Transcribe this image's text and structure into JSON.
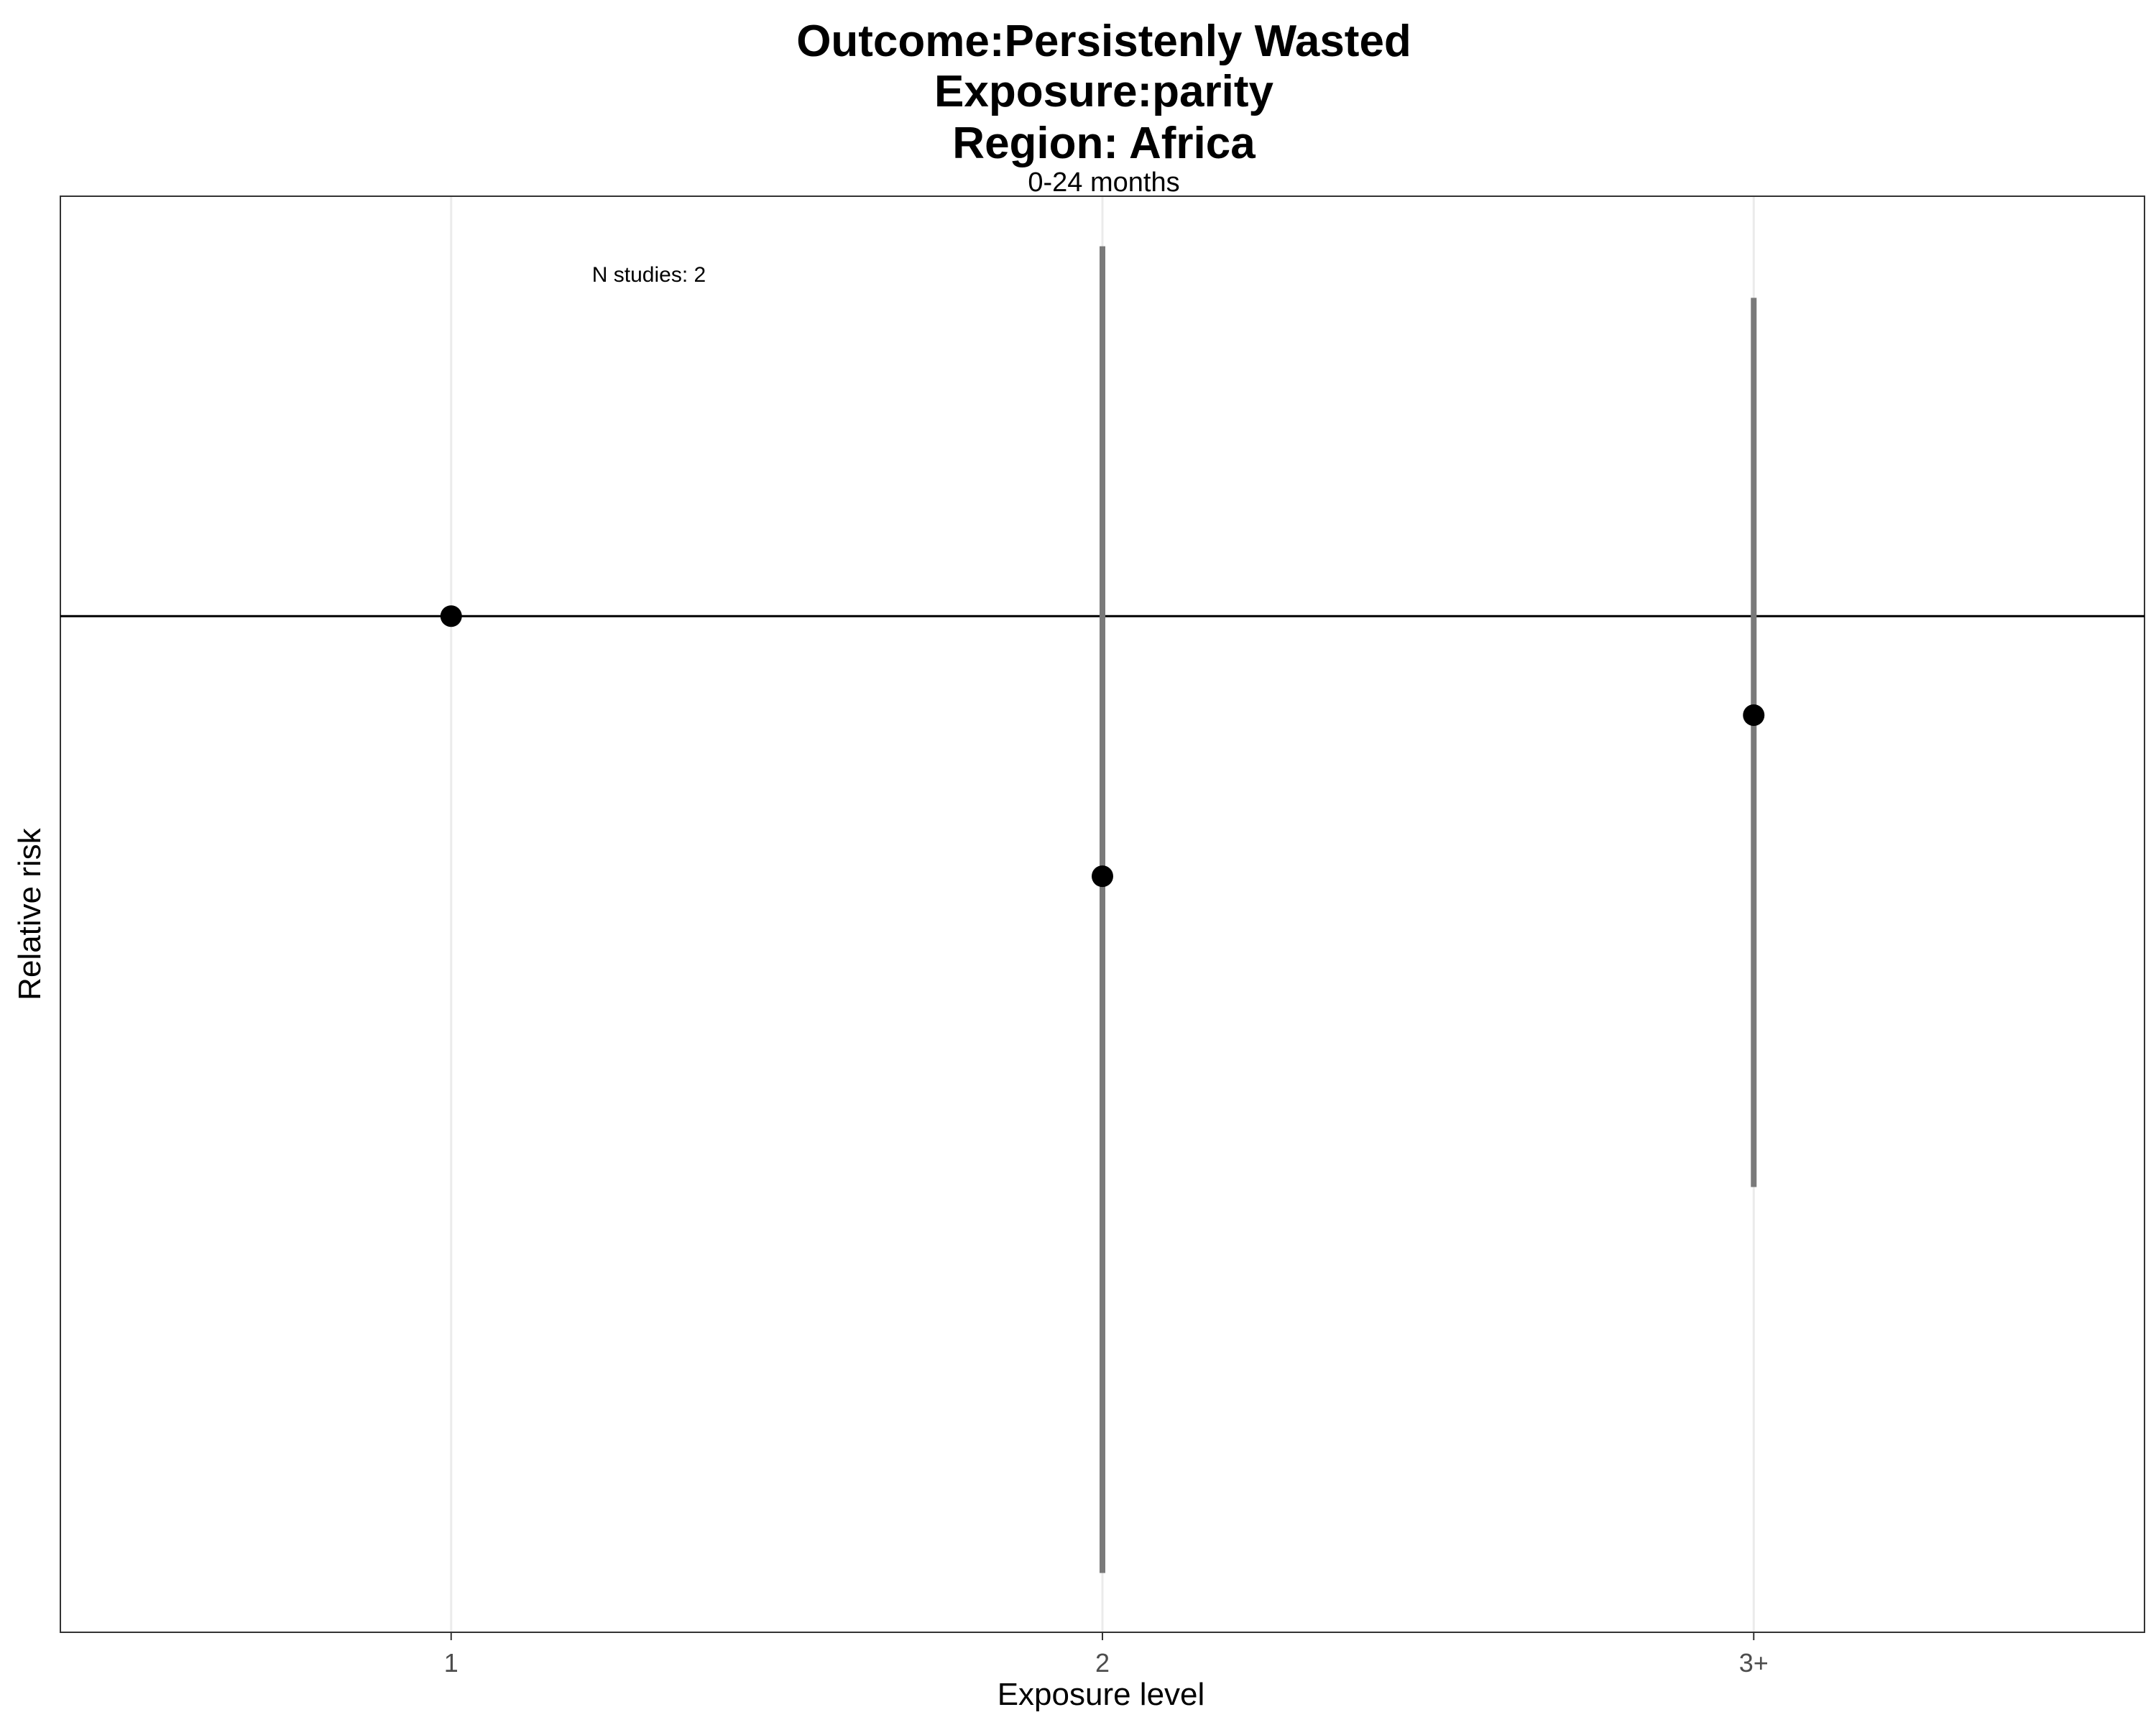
{
  "chart_data": {
    "type": "scatter",
    "title_lines": [
      "Outcome:Persistenly Wasted",
      "Exposure:parity",
      "Region: Africa"
    ],
    "subtitle": "0-24 months",
    "annotation": "N studies: 2",
    "xlabel": "Exposure level",
    "ylabel": "Relative risk",
    "categories": [
      "1",
      "2",
      "3+"
    ],
    "y_scale": "log",
    "y_ticks_shown": false,
    "grid": "vertical major gridlines only",
    "reference_line_y": 1,
    "ylim": [
      0.53,
      1.3
    ],
    "series": [
      {
        "points": [
          {
            "x": "1",
            "estimate": 1.0,
            "ci_low": null,
            "ci_high": null
          },
          {
            "x": "2",
            "estimate": 0.85,
            "ci_low": 0.55,
            "ci_high": 1.26
          },
          {
            "x": "3+",
            "estimate": 0.94,
            "ci_low": 0.7,
            "ci_high": 1.22
          }
        ]
      }
    ],
    "colors": {
      "point": "#000000",
      "ci_bar": "#7a7a7a",
      "reference_line": "#000000",
      "grid": "#ebebeb",
      "panel_border": "#333333"
    }
  }
}
